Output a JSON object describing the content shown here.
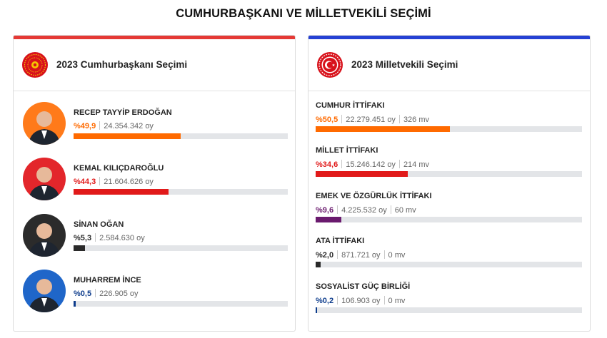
{
  "page": {
    "title": "CUMHURBAŞKANI VE MİLLETVEKİLİ SEÇİMİ"
  },
  "colors": {
    "left_topbar": "#e53935",
    "right_topbar": "#2541d4",
    "track": "#e3e5e8"
  },
  "president": {
    "title": "2023 Cumhurbaşkanı Seçimi",
    "emblem_icon": "presidential-seal-icon",
    "candidates": [
      {
        "name": "RECEP TAYYİP ERDOĞAN",
        "pct_label": "%49,9",
        "votes": "24.354.342 oy",
        "pct": 49.9,
        "color": "#ff6a00",
        "avatar_bg": "#ff7a1a"
      },
      {
        "name": "KEMAL KILIÇDAROĞLU",
        "pct_label": "%44,3",
        "votes": "21.604.626 oy",
        "pct": 44.3,
        "color": "#e11a1a",
        "avatar_bg": "#e3262b"
      },
      {
        "name": "SİNAN OĞAN",
        "pct_label": "%5,3",
        "votes": "2.584.630 oy",
        "pct": 5.3,
        "color": "#2a2a2a",
        "avatar_bg": "#2b2b2b"
      },
      {
        "name": "MUHARREM İNCE",
        "pct_label": "%0,5",
        "votes": "226.905 oy",
        "pct": 0.5,
        "color": "#0d3c8c",
        "avatar_bg": "#1f66c9"
      }
    ]
  },
  "parliament": {
    "title": "2023 Milletvekili Seçimi",
    "emblem_icon": "parliament-emblem-icon",
    "alliances": [
      {
        "name": "CUMHUR İTTİFAKI",
        "pct_label": "%50,5",
        "votes": "22.279.451 oy",
        "seats": "326 mv",
        "pct": 50.5,
        "color": "#ff6a00"
      },
      {
        "name": "MİLLET İTTİFAKI",
        "pct_label": "%34,6",
        "votes": "15.246.142 oy",
        "seats": "214 mv",
        "pct": 34.6,
        "color": "#e11a1a"
      },
      {
        "name": "EMEK VE ÖZGÜRLÜK İTTİFAKI",
        "pct_label": "%9,6",
        "votes": "4.225.532 oy",
        "seats": "60 mv",
        "pct": 9.6,
        "color": "#6a1a6e"
      },
      {
        "name": "ATA İTTİFAKI",
        "pct_label": "%2,0",
        "votes": "871.721 oy",
        "seats": "0 mv",
        "pct": 2.0,
        "color": "#2a2a2a"
      },
      {
        "name": "SOSYALİST GÜÇ BİRLİĞİ",
        "pct_label": "%0,2",
        "votes": "106.903 oy",
        "seats": "0 mv",
        "pct": 0.2,
        "color": "#0d3c8c"
      }
    ]
  }
}
